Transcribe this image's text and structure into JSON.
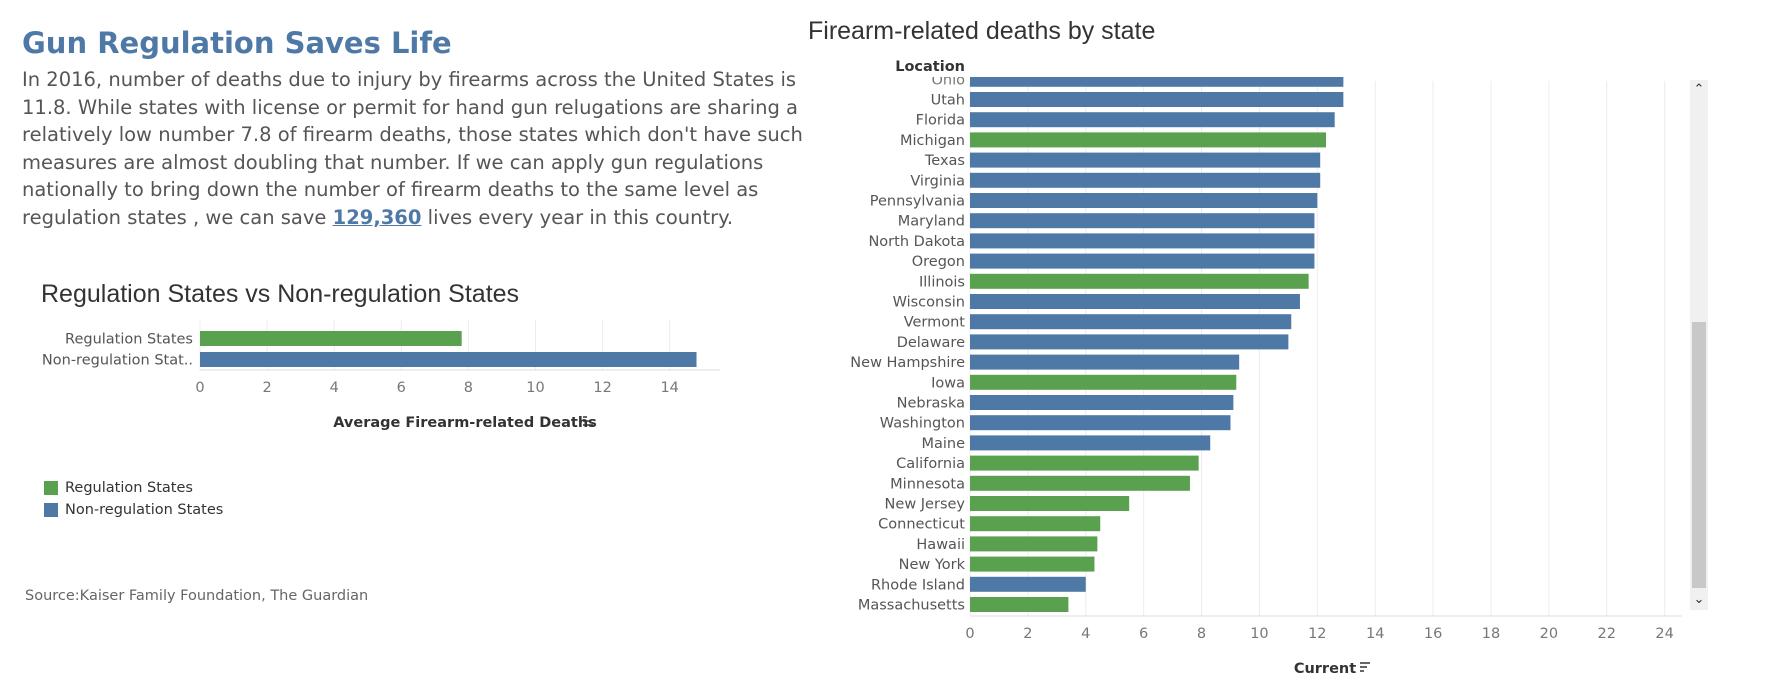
{
  "header": {
    "title": "Gun Regulation Saves Life",
    "intro_lines": [
      "In 2016, number of deaths due to injury by firearms across the United States is",
      "11.8. While states with license or permit for hand gun relugations are sharing a",
      "relatively low number 7.8 of firearm deaths, those states which don't have such",
      "measures are almost doubling that number.  If we can apply gun regulations",
      "nationally to bring down the number of  firearm deaths to the same level as"
    ],
    "last_line_before": "regulation states , we can save ",
    "last_line_highlight": "129,360",
    "last_line_after": " lives every year in this country."
  },
  "legend": {
    "items": [
      {
        "label": "Regulation States",
        "color": "#59a14f"
      },
      {
        "label": "Non-regulation States",
        "color": "#4e79a7"
      }
    ]
  },
  "source": "Source:Kaiser Family Foundation, The Guardian",
  "colors": {
    "regulation": "#59a14f",
    "non_regulation": "#4e79a7"
  },
  "chart_data": [
    {
      "type": "bar",
      "orientation": "horizontal",
      "title": "Regulation States vs Non-regulation States",
      "categories": [
        "Regulation States",
        "Non-regulation Stat.."
      ],
      "values": [
        7.8,
        14.8
      ],
      "colors": [
        "#59a14f",
        "#4e79a7"
      ],
      "xlabel": "Average Firearm-related Deaths",
      "xlim": [
        0,
        15.5
      ],
      "xticks": [
        0,
        2,
        4,
        6,
        8,
        10,
        12,
        14
      ],
      "grid": true
    },
    {
      "type": "bar",
      "orientation": "horizontal",
      "title": "Firearm-related deaths by state",
      "ylabel": "Location",
      "xlabel": "Current",
      "xlim": [
        0,
        24.6
      ],
      "xticks": [
        0,
        2,
        4,
        6,
        8,
        10,
        12,
        14,
        16,
        18,
        20,
        22,
        24
      ],
      "grid": true,
      "partially_visible_top": {
        "label": "Ohio",
        "value": 12.9,
        "group": "non_regulation"
      },
      "categories": [
        "Utah",
        "Florida",
        "Michigan",
        "Texas",
        "Virginia",
        "Pennsylvania",
        "Maryland",
        "North Dakota",
        "Oregon",
        "Illinois",
        "Wisconsin",
        "Vermont",
        "Delaware",
        "New Hampshire",
        "Iowa",
        "Nebraska",
        "Washington",
        "Maine",
        "California",
        "Minnesota",
        "New Jersey",
        "Connecticut",
        "Hawaii",
        "New York",
        "Rhode Island",
        "Massachusetts"
      ],
      "values": [
        12.9,
        12.6,
        12.3,
        12.1,
        12.1,
        12.0,
        11.9,
        11.9,
        11.9,
        11.7,
        11.4,
        11.1,
        11.0,
        9.3,
        9.2,
        9.1,
        9.0,
        8.3,
        7.9,
        7.6,
        5.5,
        4.5,
        4.4,
        4.3,
        4.0,
        3.4
      ],
      "groups": [
        "non_regulation",
        "non_regulation",
        "regulation",
        "non_regulation",
        "non_regulation",
        "non_regulation",
        "non_regulation",
        "non_regulation",
        "non_regulation",
        "regulation",
        "non_regulation",
        "non_regulation",
        "non_regulation",
        "non_regulation",
        "regulation",
        "non_regulation",
        "non_regulation",
        "non_regulation",
        "regulation",
        "regulation",
        "regulation",
        "regulation",
        "regulation",
        "regulation",
        "non_regulation",
        "regulation"
      ]
    }
  ]
}
